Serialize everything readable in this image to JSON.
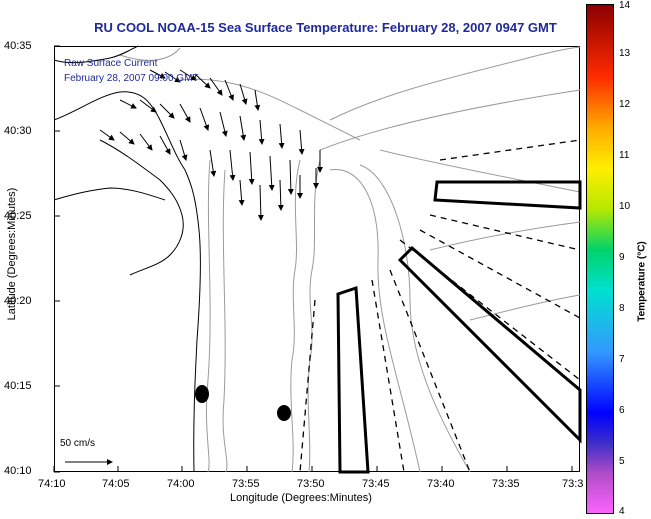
{
  "title": "RU COOL  NOAA-15  Sea Surface Temperature:  February 28, 2007 0947 GMT",
  "legend": {
    "line1": "Raw Surface Current",
    "line2": "February 28, 2007 09:00 GMT"
  },
  "scale_label": "50 cm/s",
  "axes": {
    "ylabel": "Latitude (Degrees:Minutes)",
    "xlabel": "Longitude (Degrees:Minutes)",
    "yticks": [
      "40:35",
      "40:30",
      "40:25",
      "40:20",
      "40:15",
      "40:10"
    ],
    "xticks": [
      "74:10",
      "74:05",
      "74:00",
      "73:55",
      "73:50",
      "73:45",
      "73:40",
      "73:35",
      "73:3"
    ]
  },
  "colorbar": {
    "label": "Temperature (°C)",
    "ticks": [
      "14",
      "13",
      "12",
      "11",
      "10",
      "9",
      "8",
      "7",
      "6",
      "5",
      "4"
    ],
    "range": [
      4,
      14
    ]
  },
  "colors": {
    "title": "#1f2a9a",
    "contour": "#9a9a9a",
    "coast": "#000000"
  }
}
